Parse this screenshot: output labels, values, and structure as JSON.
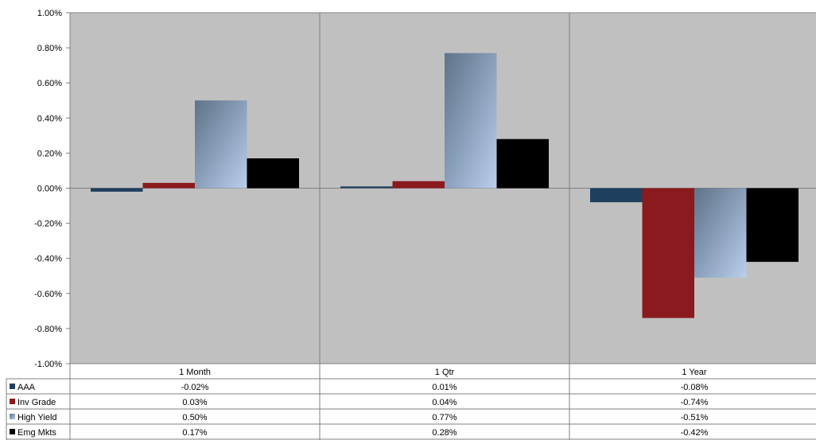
{
  "chart_data": {
    "type": "bar",
    "categories": [
      "1 Month",
      "1 Qtr",
      "1 Year"
    ],
    "series": [
      {
        "name": "AAA",
        "values": [
          -0.02,
          0.01,
          -0.08
        ],
        "color": "#1f3f5f",
        "labels": [
          "-0.02%",
          "0.01%",
          "-0.08%"
        ]
      },
      {
        "name": "Inv Grade",
        "values": [
          0.03,
          0.04,
          -0.74
        ],
        "color": "#8b1a1e",
        "labels": [
          "0.03%",
          "0.04%",
          "-0.74%"
        ]
      },
      {
        "name": "High Yield",
        "values": [
          0.5,
          0.77,
          -0.51
        ],
        "color": "#8ea9c8",
        "labels": [
          "0.50%",
          "0.77%",
          "-0.51%"
        ]
      },
      {
        "name": "Emg Mkts",
        "values": [
          0.17,
          0.28,
          -0.42
        ],
        "color": "#000000",
        "labels": [
          "0.17%",
          "0.28%",
          "-0.42%"
        ]
      }
    ],
    "ylim": [
      -1.0,
      1.0
    ],
    "yticks": [
      1.0,
      0.8,
      0.6,
      0.4,
      0.2,
      0.0,
      -0.2,
      -0.4,
      -0.6,
      -0.8,
      -1.0
    ],
    "ytick_labels": [
      "1.00%",
      "0.80%",
      "0.60%",
      "0.40%",
      "0.20%",
      "0.00%",
      "-0.20%",
      "-0.40%",
      "-0.60%",
      "-0.80%",
      "-1.00%"
    ],
    "plot_background": "#c0c0c0",
    "data_table": true,
    "xlabel": "",
    "ylabel": "",
    "title": ""
  }
}
